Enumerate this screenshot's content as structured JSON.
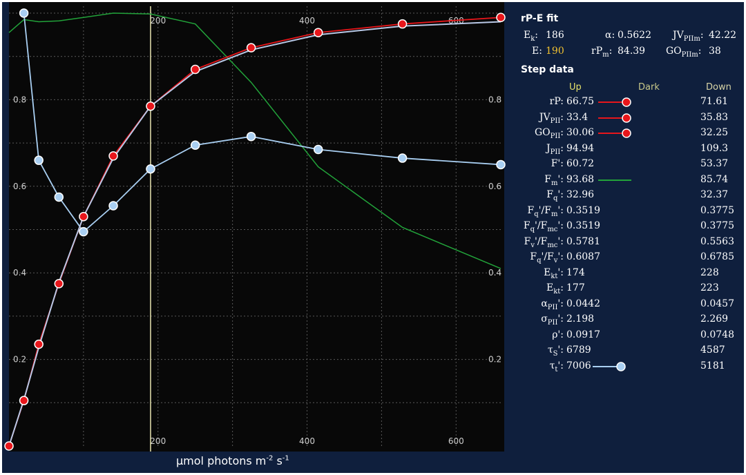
{
  "chart_data": {
    "type": "line",
    "xlabel": "µmol photons m-2 s-1",
    "xlim": [
      0,
      660
    ],
    "ylim": [
      0,
      1
    ],
    "x_ticks": [
      200,
      400,
      600
    ],
    "y_ticks": [
      0.2,
      0.4,
      0.6,
      0.8
    ],
    "grid": true,
    "marker_line_x": 190,
    "series": [
      {
        "name": "rP",
        "color": "#e8161b",
        "marker": "circle",
        "x": [
          0,
          20,
          40,
          67,
          100,
          140,
          190,
          250,
          325,
          415,
          528,
          660
        ],
        "y": [
          0,
          0.105,
          0.235,
          0.375,
          0.53,
          0.67,
          0.785,
          0.87,
          0.92,
          0.955,
          0.975,
          0.99
        ]
      },
      {
        "name": "rP-E fit",
        "color": "#b9c8e6",
        "marker": "none",
        "x": [
          0,
          20,
          40,
          67,
          100,
          140,
          190,
          250,
          325,
          415,
          528,
          660
        ],
        "y": [
          0,
          0.107,
          0.228,
          0.378,
          0.53,
          0.665,
          0.785,
          0.865,
          0.915,
          0.95,
          0.97,
          0.98
        ]
      },
      {
        "name": "τt'",
        "color": "#a9cff2",
        "marker": "circle",
        "x": [
          20,
          40,
          67,
          100,
          140,
          190,
          250,
          325,
          415,
          528,
          660
        ],
        "y": [
          1.0,
          0.66,
          0.575,
          0.495,
          0.555,
          0.64,
          0.695,
          0.715,
          0.685,
          0.665,
          0.65
        ]
      },
      {
        "name": "Fm'",
        "color": "#22a33a",
        "marker": "none",
        "x": [
          0,
          20,
          40,
          67,
          100,
          140,
          190,
          250,
          325,
          415,
          528,
          660
        ],
        "y": [
          0.955,
          0.985,
          0.98,
          0.982,
          0.99,
          1.0,
          0.998,
          0.975,
          0.84,
          0.645,
          0.505,
          0.41
        ]
      }
    ]
  },
  "panel": {
    "fit_title": "rP-E fit",
    "fit": {
      "Ek_label": "Ek:",
      "Ek_value": "186",
      "alpha_label": "α:",
      "alpha_value": "0.5622",
      "JVPIIm_label": "JVPIIm:",
      "JVPIIm_value": "42.22",
      "E_label": "E:",
      "E_value": "190",
      "rPm_label": "rPm:",
      "rPm_value": "84.39",
      "GOPIIm_label": "GOPIIm:",
      "GOPIIm_value": "38"
    },
    "step_title": "Step data",
    "columns": {
      "up": "Up",
      "dark": "Dark",
      "down": "Down"
    },
    "rows": [
      {
        "label": "rP:",
        "up": "66.75",
        "down": "71.61"
      },
      {
        "label": "JVPII:",
        "up": "33.4",
        "down": "35.83"
      },
      {
        "label": "GOPII:",
        "up": "30.06",
        "down": "32.25"
      },
      {
        "label": "JPII:",
        "up": "94.94",
        "down": "109.3"
      },
      {
        "label": "F':",
        "up": "60.72",
        "down": "53.37"
      },
      {
        "label": "Fm':",
        "up": "93.68",
        "down": "85.74"
      },
      {
        "label": "Fq':",
        "up": "32.96",
        "down": "32.37"
      },
      {
        "label": "Fq'/Fm':",
        "up": "0.3519",
        "down": "0.3775"
      },
      {
        "label": "Fq'/Fmc':",
        "up": "0.3519",
        "down": "0.3775"
      },
      {
        "label": "Fv'/Fmc':",
        "up": "0.5781",
        "down": "0.5563"
      },
      {
        "label": "Fq'/Fv':",
        "up": "0.6087",
        "down": "0.6785"
      },
      {
        "label": "Ekt':",
        "up": "174",
        "down": "228"
      },
      {
        "label": "Ekt:",
        "up": "177",
        "down": "223"
      },
      {
        "label": "αPII':",
        "up": "0.0442",
        "down": "0.0457"
      },
      {
        "label": "σPII':",
        "up": "2.198",
        "down": "2.269"
      },
      {
        "label": "ρ':",
        "up": "0.0917",
        "down": "0.0748"
      },
      {
        "label": "τS':",
        "up": "6789",
        "down": "4587"
      },
      {
        "label": "τt':",
        "up": "7006",
        "down": "5181"
      }
    ],
    "colors": {
      "up": "#e6e26a",
      "dark": "#c9c98a",
      "down": "#d8d4a6",
      "E": "#f0c030"
    }
  }
}
